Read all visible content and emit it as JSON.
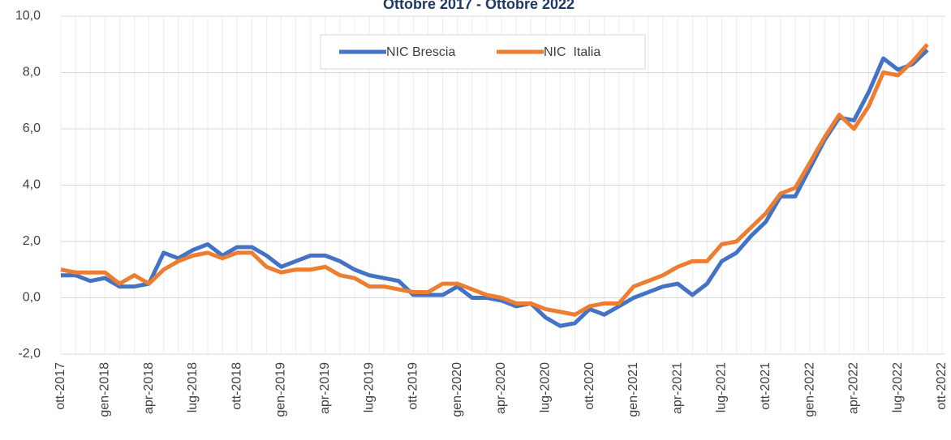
{
  "chart_data": {
    "type": "line",
    "title": "Ottobre 2017 - Ottobre 2022",
    "categories": [
      "ott-2017",
      null,
      null,
      "gen-2018",
      null,
      null,
      "apr-2018",
      null,
      null,
      "lug-2018",
      null,
      null,
      "ott-2018",
      null,
      null,
      "gen-2019",
      null,
      null,
      "apr-2019",
      null,
      null,
      "lug-2019",
      null,
      null,
      "ott-2019",
      null,
      null,
      "gen-2020",
      null,
      null,
      "apr-2020",
      null,
      null,
      "lug-2020",
      null,
      null,
      "ott-2020",
      null,
      null,
      "gen-2021",
      null,
      null,
      "apr-2021",
      null,
      null,
      "lug-2021",
      null,
      null,
      "ott-2021",
      null,
      null,
      "gen-2022",
      null,
      null,
      "apr-2022",
      null,
      null,
      "lug-2022",
      null,
      null,
      "ott-2022"
    ],
    "series": [
      {
        "name": "NIC Brescia",
        "color": "#4472c4",
        "values": [
          0.8,
          0.8,
          0.6,
          0.7,
          0.4,
          0.4,
          0.5,
          1.6,
          1.4,
          1.7,
          1.9,
          1.5,
          1.8,
          1.8,
          1.5,
          1.1,
          1.3,
          1.5,
          1.5,
          1.3,
          1.0,
          0.8,
          0.7,
          0.6,
          0.1,
          0.1,
          0.1,
          0.4,
          0.0,
          0.0,
          -0.1,
          -0.3,
          -0.2,
          -0.7,
          -1.0,
          -0.9,
          -0.4,
          -0.6,
          -0.3,
          0.0,
          0.2,
          0.4,
          0.5,
          0.1,
          0.5,
          1.3,
          1.6,
          2.2,
          2.7,
          3.6,
          3.6,
          4.6,
          5.6,
          6.4,
          6.3,
          7.3,
          8.5,
          8.1,
          8.3,
          8.8,
          null
        ]
      },
      {
        "name": "NIC  Italia",
        "color": "#ed7d31",
        "values": [
          1.0,
          0.9,
          0.9,
          0.9,
          0.5,
          0.8,
          0.5,
          1.0,
          1.3,
          1.5,
          1.6,
          1.4,
          1.6,
          1.6,
          1.1,
          0.9,
          1.0,
          1.0,
          1.1,
          0.8,
          0.7,
          0.4,
          0.4,
          0.3,
          0.2,
          0.2,
          0.5,
          0.5,
          0.3,
          0.1,
          0.0,
          -0.2,
          -0.2,
          -0.4,
          -0.5,
          -0.6,
          -0.3,
          -0.2,
          -0.2,
          0.4,
          0.6,
          0.8,
          1.1,
          1.3,
          1.3,
          1.9,
          2.0,
          2.5,
          3.0,
          3.7,
          3.9,
          4.8,
          5.7,
          6.5,
          6.0,
          6.8,
          8.0,
          7.9,
          8.4,
          9.0,
          null
        ]
      }
    ],
    "ylim": [
      -2,
      10
    ],
    "yticks": [
      {
        "value": -2,
        "label": "-2,0"
      },
      {
        "value": 0,
        "label": "0,0"
      },
      {
        "value": 2,
        "label": "2,0"
      },
      {
        "value": 4,
        "label": "4,0"
      },
      {
        "value": 6,
        "label": "6,0"
      },
      {
        "value": 8,
        "label": "8,0"
      },
      {
        "value": 10,
        "label": "10,0"
      }
    ],
    "grid": true,
    "legend": "top"
  }
}
